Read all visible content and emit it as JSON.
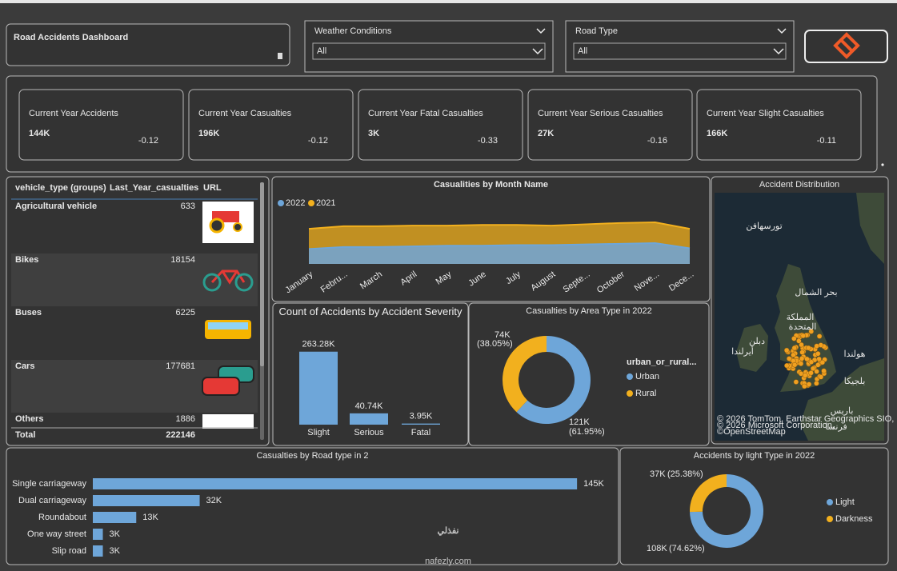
{
  "header": {
    "title": "Road Accidents Dashboard"
  },
  "filters": [
    {
      "label": "Weather Conditions",
      "value": "All"
    },
    {
      "label": "Road Type",
      "value": "All"
    }
  ],
  "kpis": [
    {
      "label": "Current Year Accidents",
      "value": "144K",
      "change": "-0.12"
    },
    {
      "label": "Current Year Casualties",
      "value": "196K",
      "change": "-0.12"
    },
    {
      "label": "Current Year Fatal Casualties",
      "value": "3K",
      "change": "-0.33"
    },
    {
      "label": "Current Year Serious Casualties",
      "value": "27K",
      "change": "-0.16"
    },
    {
      "label": "Current Year Slight Casualties",
      "value": "166K",
      "change": "-0.11"
    }
  ],
  "vehicle_table": {
    "columns": [
      "vehicle_type (groups)",
      "Last_Year_casualties",
      "URL"
    ],
    "rows": [
      {
        "name": "Agricultural vehicle",
        "value": 633
      },
      {
        "name": "Bikes",
        "value": 18154
      },
      {
        "name": "Buses",
        "value": 6225
      },
      {
        "name": "Cars",
        "value": 177681
      },
      {
        "name": "Others",
        "value": 1886
      }
    ],
    "total": {
      "name": "Total",
      "value": 222146
    }
  },
  "map": {
    "title": "Accident Distribution",
    "labels": [
      "تورسهافن",
      "بحر الشمال",
      "المملكة",
      "المتحدة",
      "دبلن",
      "أيرلندا",
      "هولندا",
      "بلجيكا",
      "باريس",
      "فرنسا"
    ],
    "attribution": [
      "© 2026 TomTom, Earthstar Geographics SIO,",
      "© 2026 Microsoft Corporation,",
      "©OpenStreetMap"
    ]
  },
  "chart_data": [
    {
      "type": "area",
      "title": "Casualities by Month Name",
      "categories": [
        "January",
        "Febru...",
        "March",
        "April",
        "May",
        "June",
        "July",
        "August",
        "Septe...",
        "October",
        "Nove...",
        "Dece..."
      ],
      "series": [
        {
          "name": "2022",
          "color": "#6ea6d9",
          "values": [
            14300,
            14600,
            14600,
            14700,
            14800,
            14800,
            14900,
            14900,
            15000,
            15100,
            15200,
            14400
          ]
        },
        {
          "name": "2021",
          "color": "#f2b01e",
          "values": [
            17400,
            17800,
            17800,
            17900,
            17900,
            18000,
            18000,
            17900,
            18100,
            18300,
            18400,
            17400
          ]
        }
      ],
      "ylim": [
        12000,
        20000
      ]
    },
    {
      "type": "bar",
      "title": "Count of Accidents by Accident Severity",
      "categories": [
        "Slight",
        "Serious",
        "Fatal"
      ],
      "values": [
        263280,
        40740,
        3950
      ],
      "value_labels": [
        "263.28K",
        "40.74K",
        "3.95K"
      ],
      "color": "#6ea6d9",
      "ylim": [
        0,
        300000
      ]
    },
    {
      "type": "donut",
      "title": "Casualties by Area Type in 2022",
      "legend_title": "urban_or_rural...",
      "categories": [
        "Urban",
        "Rural"
      ],
      "values": [
        121000,
        74000
      ],
      "value_labels": [
        "121K",
        "74K"
      ],
      "percents": [
        61.95,
        38.05
      ],
      "percent_labels": [
        "(61.95%)",
        "(38.05%)"
      ],
      "colors": [
        "#6ea6d9",
        "#f2b01e"
      ]
    },
    {
      "type": "hbar",
      "title": "Casualties by Road type in 2",
      "categories": [
        "Single carriageway",
        "Dual carriageway",
        "Roundabout",
        "One way street",
        "Slip road"
      ],
      "values": [
        145000,
        32000,
        13000,
        3000,
        3000
      ],
      "value_labels": [
        "145K",
        "32K",
        "13K",
        "3K",
        "3K"
      ],
      "color": "#6ea6d9",
      "xlim": [
        0,
        150000
      ]
    },
    {
      "type": "donut",
      "title": "Accidents by light Type in 2022",
      "categories": [
        "Light",
        "Darkness"
      ],
      "values": [
        108000,
        37000
      ],
      "value_labels": [
        "108K",
        "37K"
      ],
      "percents": [
        74.62,
        25.38
      ],
      "percent_labels": [
        "(74.62%)",
        "(25.38%)"
      ],
      "colors": [
        "#6ea6d9",
        "#f2b01e"
      ]
    }
  ],
  "watermark": {
    "arabic": "نفذلي",
    "latin": "nafezly.com"
  }
}
